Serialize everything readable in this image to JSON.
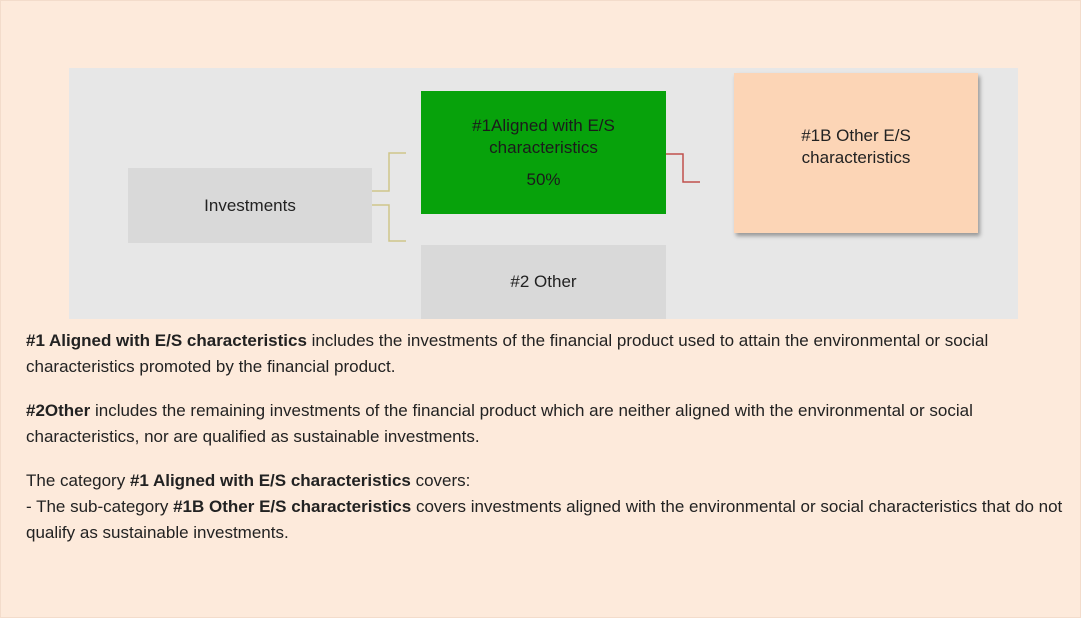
{
  "nodes": [
    {
      "label": "Investments"
    },
    {
      "lines": [
        "#1Aligned with E/S",
        "characteristics"
      ],
      "share": "50%"
    },
    {
      "label": "#2 Other"
    },
    {
      "lines": [
        "#1B Other E/S",
        "characteristics"
      ]
    }
  ],
  "paragraphs": [
    [
      {
        "bold": true,
        "text": "#1 Aligned with E/S characteristics"
      },
      {
        "text": " includes the investments of the financial product used to attain the environmental or social characteristics promoted by the financial product."
      }
    ],
    [
      {
        "bold": true,
        "text": "#2Other"
      },
      {
        "text": " includes the remaining investments of the financial product which are neither aligned with the environmental or social characteristics, nor are qualified as sustainable investments."
      }
    ],
    [
      {
        "text": "The category "
      },
      {
        "bold": true,
        "text": "#1 Aligned with E/S characteristics"
      },
      {
        "text": " covers:"
      }
    ],
    [
      {
        "text": "- The sub-category "
      },
      {
        "bold": true,
        "text": "#1B Other E/S characteristics"
      },
      {
        "text": " covers investments aligned with the environmental or social characteristics that do not qualify as sustainable investments."
      }
    ]
  ]
}
